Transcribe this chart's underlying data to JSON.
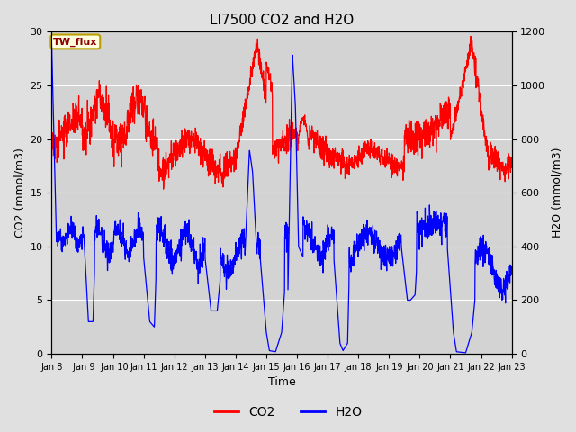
{
  "title": "LI7500 CO2 and H2O",
  "xlabel": "Time",
  "ylabel_left": "CO2 (mmol/m3)",
  "ylabel_right": "H2O (mmol/m3)",
  "ylim_left": [
    0,
    30
  ],
  "ylim_right": [
    0,
    1200
  ],
  "xtick_labels": [
    "Jan 8",
    " Jan 9",
    " Jan 10",
    "Jan 11",
    "Jan 12",
    "Jan 13",
    "Jan 14",
    "Jan 15",
    "Jan 16",
    "Jan 17",
    "Jan 18",
    "Jan 19",
    "Jan 20",
    "Jan 21",
    "Jan 22",
    "Jan 23"
  ],
  "co2_color": "red",
  "h2o_color": "blue",
  "annotation_text": "TW_flux",
  "fig_bg_color": "#e0e0e0",
  "plot_bg_color": "#d3d3d3",
  "title_fontsize": 11,
  "axis_fontsize": 9,
  "tick_fontsize": 8,
  "legend_fontsize": 10,
  "linewidth": 0.9
}
